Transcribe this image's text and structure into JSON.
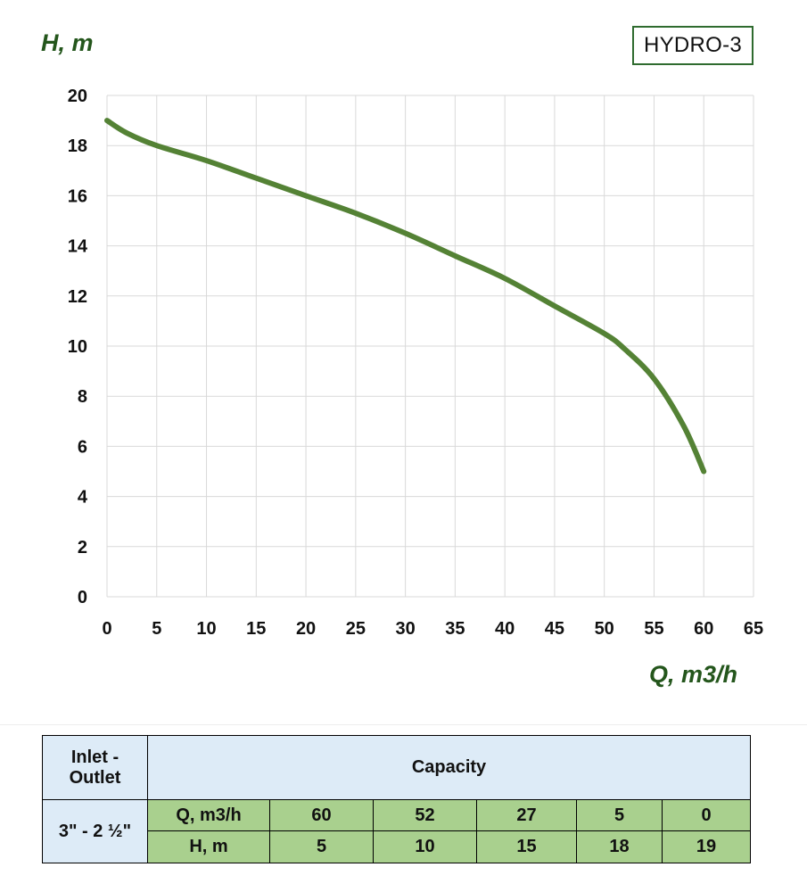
{
  "badge": {
    "model": "HYDRO-3"
  },
  "chart_data": {
    "type": "line",
    "xlabel": "Q, m3/h",
    "ylabel": "H, m",
    "xlim": [
      0,
      65
    ],
    "ylim": [
      0,
      20
    ],
    "x_ticks": [
      0,
      5,
      10,
      15,
      20,
      25,
      30,
      35,
      40,
      45,
      50,
      55,
      60,
      65
    ],
    "y_ticks": [
      0,
      2,
      4,
      6,
      8,
      10,
      12,
      14,
      16,
      18,
      20
    ],
    "grid": true,
    "line_color": "#548235",
    "series": [
      {
        "x": [
          0,
          2,
          5,
          10,
          15,
          20,
          25,
          30,
          35,
          40,
          45,
          50,
          52,
          55,
          58,
          60
        ],
        "y": [
          19,
          18.5,
          18,
          17.4,
          16.7,
          16,
          15.3,
          14.5,
          13.6,
          12.7,
          11.6,
          10.5,
          9.9,
          8.7,
          6.8,
          5
        ]
      }
    ]
  },
  "table": {
    "inlet_header_line1": "Inlet -",
    "inlet_header_line2": "Outlet",
    "capacity_header": "Capacity",
    "inlet_value": "3\" - 2 ½\"",
    "q_label": "Q, m3/h",
    "h_label": "H, m",
    "q_values": [
      "60",
      "52",
      "27",
      "5",
      "0"
    ],
    "h_values": [
      "5",
      "10",
      "15",
      "18",
      "19"
    ]
  }
}
